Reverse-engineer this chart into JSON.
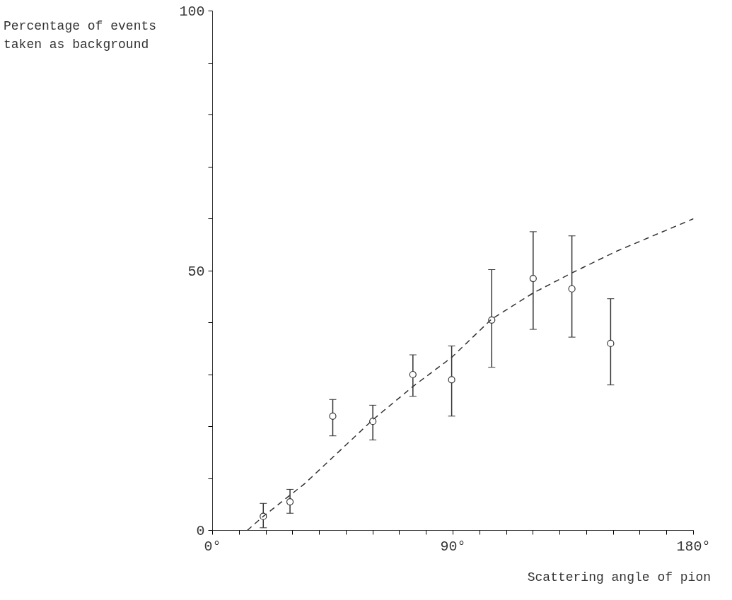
{
  "chart_data": {
    "type": "scatter",
    "xlabel": "Scattering angle of pion",
    "ylabel": "Percentage of events taken as background",
    "xlim": [
      0,
      180
    ],
    "ylim": [
      0,
      100
    ],
    "xticks": [
      {
        "value": 0,
        "label": "0°"
      },
      {
        "value": 10,
        "label": null
      },
      {
        "value": 20,
        "label": null
      },
      {
        "value": 30,
        "label": null
      },
      {
        "value": 40,
        "label": null
      },
      {
        "value": 50,
        "label": null
      },
      {
        "value": 60,
        "label": null
      },
      {
        "value": 70,
        "label": null
      },
      {
        "value": 80,
        "label": null
      },
      {
        "value": 90,
        "label": "90°"
      },
      {
        "value": 100,
        "label": null
      },
      {
        "value": 110,
        "label": null
      },
      {
        "value": 120,
        "label": null
      },
      {
        "value": 130,
        "label": null
      },
      {
        "value": 140,
        "label": null
      },
      {
        "value": 150,
        "label": null
      },
      {
        "value": 160,
        "label": null
      },
      {
        "value": 170,
        "label": null
      },
      {
        "value": 180,
        "label": "180°"
      }
    ],
    "yticks": [
      0,
      {
        "value": 10,
        "label": null
      },
      {
        "value": 20,
        "label": null
      },
      {
        "value": 30,
        "label": null
      },
      {
        "value": 40,
        "label": null
      },
      50,
      {
        "value": 60,
        "label": null
      },
      {
        "value": 70,
        "label": null
      },
      {
        "value": 80,
        "label": null
      },
      {
        "value": 90,
        "label": null
      },
      100
    ],
    "grid": false,
    "marker": "circle",
    "series": [
      {
        "color": "#333333",
        "x": [
          19,
          29,
          45,
          60,
          75,
          89.5,
          104.5,
          120,
          134.5,
          149
        ],
        "values": [
          2.7,
          5.5,
          22,
          21,
          30,
          29,
          40.5,
          48.5,
          46.5,
          36
        ],
        "errors": [
          [
            0.5,
            5.2
          ],
          [
            3.3,
            7.9
          ],
          [
            18.2,
            25.2
          ],
          [
            17.4,
            24.1
          ],
          [
            25.8,
            33.8
          ],
          [
            22,
            35.5
          ],
          [
            31.4,
            50.2
          ],
          [
            38.7,
            57.5
          ],
          [
            37.2,
            56.7
          ],
          [
            28,
            44.6
          ]
        ]
      },
      {
        "type": "line",
        "color": "#333333",
        "line_style": "dashed",
        "marker": "none",
        "x": [
          13,
          19,
          34.5,
          60,
          75,
          89.5,
          104.5,
          120,
          135,
          151,
          180
        ],
        "values": [
          0,
          2.7,
          9,
          21.3,
          27.7,
          33.3,
          40.7,
          45.7,
          49.7,
          53.7,
          60
        ]
      }
    ]
  }
}
